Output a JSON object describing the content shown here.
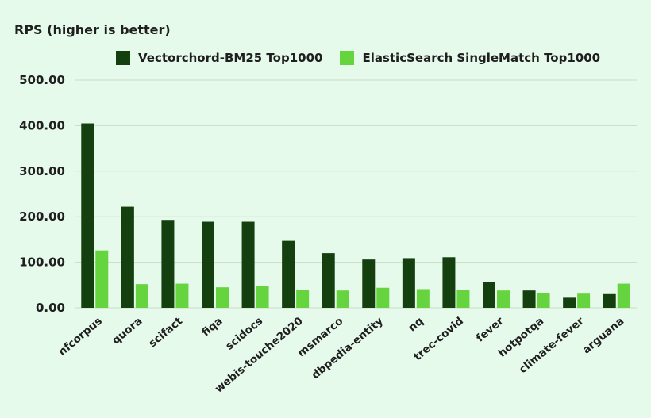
{
  "chart_data": {
    "type": "bar",
    "title": "RPS (higher is better)",
    "xlabel": "",
    "ylabel": "",
    "ylim": [
      0,
      500
    ],
    "yticks": [
      "0.00",
      "100.00",
      "200.00",
      "300.00",
      "400.00",
      "500.00"
    ],
    "grid": true,
    "legend_position": "top",
    "categories": [
      "nfcorpus",
      "quora",
      "scifact",
      "fiqa",
      "scidocs",
      "webis-touche2020",
      "msmarco",
      "dbpedia-entity",
      "nq",
      "trec-covid",
      "fever",
      "hotpotqa",
      "climate-fever",
      "arguana"
    ],
    "series": [
      {
        "name": "Vectorchord-BM25 Top1000",
        "color": "#143f0f",
        "values": [
          405,
          222,
          193,
          189,
          189,
          147,
          120,
          106,
          109,
          111,
          56,
          38,
          22,
          30
        ]
      },
      {
        "name": "ElasticSearch SingleMatch Top1000",
        "color": "#66d43e",
        "values": [
          126,
          52,
          53,
          45,
          48,
          39,
          38,
          44,
          41,
          40,
          38,
          33,
          31,
          53
        ]
      }
    ]
  }
}
